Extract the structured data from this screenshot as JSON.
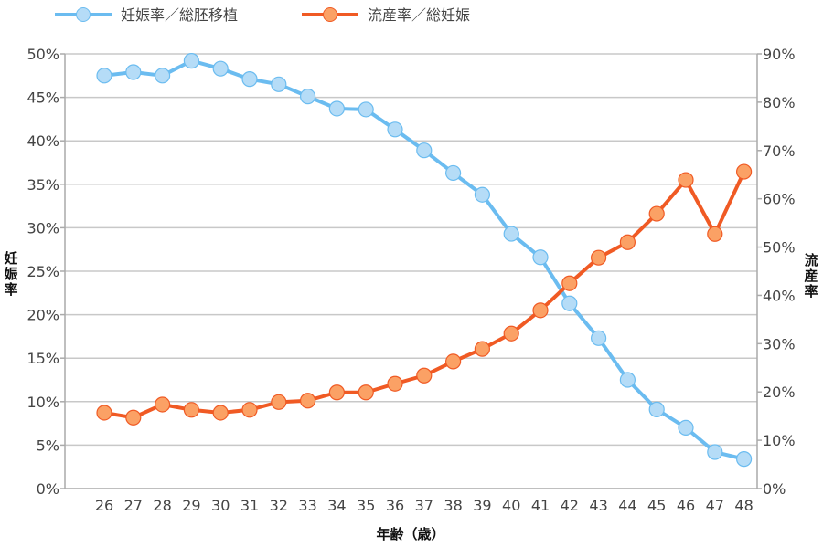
{
  "chart_data": {
    "type": "line",
    "title": "",
    "xlabel": "年齢（歳）",
    "ylabel": "妊娠率",
    "y2label": "流産率",
    "categories": [
      "26",
      "27",
      "28",
      "29",
      "30",
      "31",
      "32",
      "33",
      "34",
      "35",
      "36",
      "37",
      "38",
      "39",
      "40",
      "41",
      "42",
      "43",
      "44",
      "45",
      "46",
      "47",
      "48"
    ],
    "y_axis": {
      "range": [
        0,
        50
      ],
      "ticks": [
        0,
        5,
        10,
        15,
        20,
        25,
        30,
        35,
        40,
        45,
        50
      ],
      "tick_labels": [
        "0%",
        "5%",
        "10%",
        "15%",
        "20%",
        "25%",
        "30%",
        "35%",
        "40%",
        "45%",
        "50%"
      ],
      "unit": "%"
    },
    "y2_axis": {
      "range": [
        0,
        90
      ],
      "ticks": [
        0,
        10,
        20,
        30,
        40,
        50,
        60,
        70,
        80,
        90
      ],
      "tick_labels": [
        "0%",
        "10%",
        "20%",
        "30%",
        "40%",
        "50%",
        "60%",
        "70%",
        "80%",
        "90%"
      ],
      "unit": "%"
    },
    "grid": true,
    "legend_position": "top-left",
    "series": [
      {
        "name": "妊娠率／総胚移植",
        "axis": "left",
        "color": "#6bbcf0",
        "marker_fill": "#b5dcf7",
        "values": [
          47.5,
          47.9,
          47.5,
          49.2,
          48.3,
          47.1,
          46.5,
          45.1,
          43.7,
          43.6,
          41.3,
          38.9,
          36.3,
          33.8,
          29.3,
          26.6,
          21.3,
          17.3,
          12.5,
          9.1,
          7.0,
          4.2,
          3.4
        ]
      },
      {
        "name": "流産率／総妊娠",
        "axis": "right",
        "color": "#f05a24",
        "marker_fill": "#fba165",
        "values": [
          15.7,
          14.7,
          17.4,
          16.3,
          15.7,
          16.3,
          17.9,
          18.2,
          19.9,
          19.9,
          21.7,
          23.4,
          26.3,
          28.9,
          32.1,
          36.9,
          42.5,
          47.8,
          51.0,
          56.9,
          63.9,
          52.7,
          65.6
        ]
      }
    ]
  }
}
